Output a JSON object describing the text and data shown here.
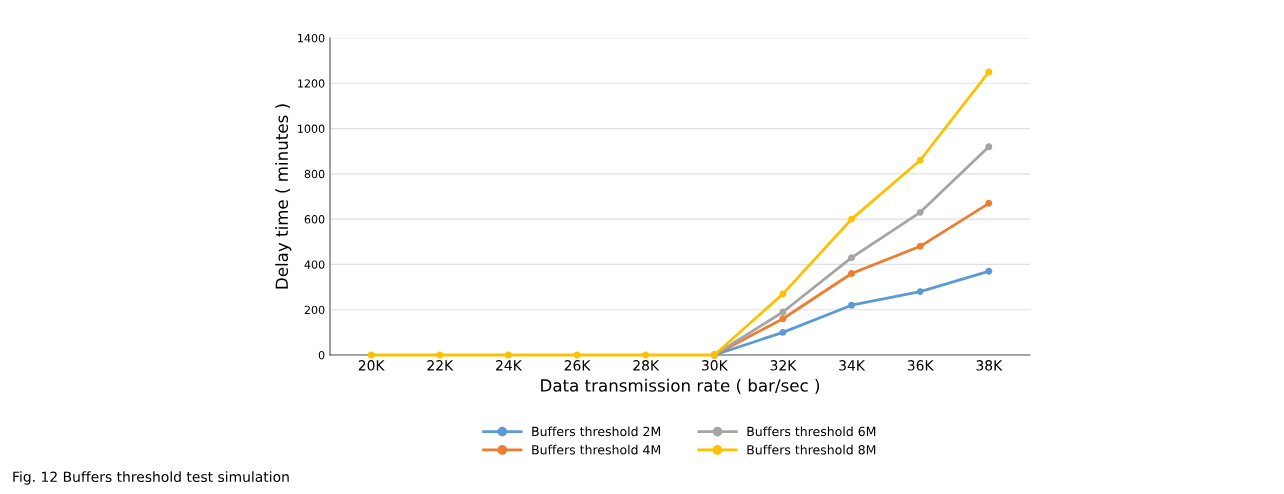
{
  "chart_data": {
    "type": "line",
    "xlabel": "Data transmission rate ( bar/sec )",
    "ylabel": "Delay time ( minutes )",
    "categories": [
      "20K",
      "22K",
      "24K",
      "26K",
      "28K",
      "30K",
      "32K",
      "34K",
      "36K",
      "38K"
    ],
    "series": [
      {
        "name": "Buffers threshold 2M",
        "color": "#5b9bd5",
        "values": [
          null,
          null,
          null,
          null,
          null,
          0,
          100,
          220,
          280,
          370
        ]
      },
      {
        "name": "Buffers threshold 4M",
        "color": "#ed7d31",
        "values": [
          null,
          null,
          null,
          null,
          null,
          0,
          160,
          360,
          480,
          670
        ]
      },
      {
        "name": "Buffers threshold 6M",
        "color": "#a5a5a5",
        "values": [
          null,
          null,
          null,
          null,
          null,
          0,
          190,
          430,
          630,
          920
        ]
      },
      {
        "name": "Buffers threshold 8M",
        "color": "#ffc000",
        "values": [
          0,
          0,
          0,
          0,
          0,
          0,
          270,
          600,
          860,
          1250
        ]
      }
    ],
    "ylim": [
      0,
      1400
    ],
    "yticks": [
      0,
      200,
      400,
      600,
      800,
      1000,
      1200,
      1400
    ],
    "grid": "y",
    "legend": "bottom",
    "marker": "circle",
    "line_style": "solid",
    "annotations": [
      "Fig. 12 Buffers threshold test simulation"
    ]
  }
}
